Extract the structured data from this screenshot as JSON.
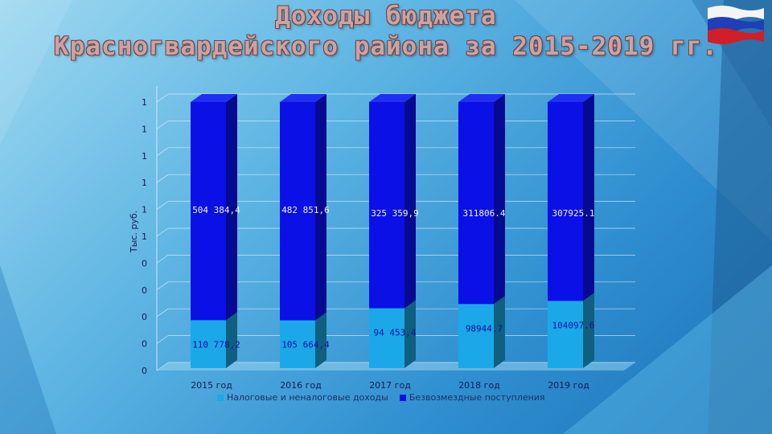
{
  "title_line1": "Доходы бюджета",
  "title_line2": "Красногвардейского района за 2015-2019 гг.",
  "colors": {
    "series_top": "#0a10e6",
    "series_top_side": "#060a90",
    "series_bottom": "#1aa8e8",
    "series_bottom_side": "#0f5f80",
    "value_label": "#1010a0",
    "axis_text": "#1a1a50"
  },
  "chart_data": {
    "type": "bar",
    "stacked": true,
    "three_d": true,
    "categories": [
      "2015 год",
      "2016 год",
      "2017 год",
      "2018 год",
      "2019 год"
    ],
    "ylabel": "Тыс. руб.",
    "ytick_labels": [
      "0",
      "0",
      "0",
      "0",
      "0",
      "1",
      "1",
      "1",
      "1",
      "1",
      "1"
    ],
    "grid": true,
    "legend_position": "bottom",
    "series": [
      {
        "name": "Налоговые и неналоговые доходы",
        "values": [
          110778.2,
          105664.4,
          94453.4,
          98944.7,
          104097.6
        ],
        "labels": [
          "110 778,2",
          "105 664,4",
          "94 453,4",
          "98944.7",
          "104097.6"
        ]
      },
      {
        "name": "Безвозмездные поступления",
        "values": [
          504384.4,
          482851.6,
          325359.9,
          311806.4,
          307925.1
        ],
        "labels": [
          "504 384,4",
          "482 851,6",
          "325 359,9",
          "311806.4",
          "307925.1"
        ]
      }
    ]
  }
}
